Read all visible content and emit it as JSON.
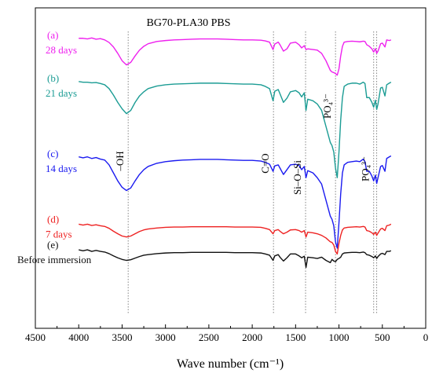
{
  "chart_data": {
    "type": "line",
    "title": "BG70-PLA30 PBS",
    "xlabel": "Wave number (cm⁻¹)",
    "ylabel": "",
    "xlim": [
      4500,
      0
    ],
    "x_reversed": true,
    "x_ticks": [
      4500,
      4000,
      3500,
      3000,
      2500,
      2000,
      1500,
      1000,
      500,
      0
    ],
    "y_ticks": [],
    "grid": false,
    "legend": "none",
    "series": [
      {
        "name": "28 days",
        "letter": "(a)",
        "color": "#ee20ee",
        "baseline": 0.9,
        "x": [
          4000,
          3950,
          3900,
          3850,
          3800,
          3750,
          3700,
          3650,
          3600,
          3550,
          3500,
          3450,
          3400,
          3350,
          3300,
          3250,
          3200,
          3100,
          3000,
          2900,
          2800,
          2700,
          2600,
          2500,
          2400,
          2300,
          2200,
          2100,
          2000,
          1900,
          1850,
          1800,
          1760,
          1740,
          1700,
          1680,
          1640,
          1600,
          1560,
          1500,
          1460,
          1430,
          1400,
          1380,
          1360,
          1300,
          1250,
          1200,
          1150,
          1100,
          1080,
          1060,
          1040,
          1020,
          1000,
          980,
          960,
          940,
          900,
          850,
          800,
          760,
          720,
          700,
          680,
          650,
          620,
          600,
          580,
          565,
          550,
          520,
          500,
          470,
          450,
          420,
          400
        ],
        "y": [
          0.905,
          0.905,
          0.903,
          0.906,
          0.902,
          0.904,
          0.9,
          0.892,
          0.878,
          0.858,
          0.835,
          0.822,
          0.83,
          0.85,
          0.868,
          0.88,
          0.888,
          0.895,
          0.898,
          0.9,
          0.901,
          0.902,
          0.903,
          0.903,
          0.903,
          0.902,
          0.901,
          0.9,
          0.9,
          0.899,
          0.897,
          0.893,
          0.87,
          0.887,
          0.893,
          0.885,
          0.865,
          0.872,
          0.89,
          0.893,
          0.885,
          0.875,
          0.882,
          0.87,
          0.872,
          0.87,
          0.868,
          0.858,
          0.835,
          0.805,
          0.8,
          0.798,
          0.795,
          0.79,
          0.81,
          0.85,
          0.88,
          0.893,
          0.895,
          0.896,
          0.895,
          0.894,
          0.896,
          0.895,
          0.885,
          0.88,
          0.872,
          0.862,
          0.873,
          0.858,
          0.865,
          0.888,
          0.89,
          0.878,
          0.9,
          0.898,
          0.9
        ]
      },
      {
        "name": "21 days",
        "letter": "(b)",
        "color": "#1b9c94",
        "baseline": 0.765,
        "x": [
          4000,
          3950,
          3900,
          3850,
          3800,
          3750,
          3700,
          3650,
          3600,
          3550,
          3500,
          3450,
          3400,
          3350,
          3300,
          3250,
          3200,
          3100,
          3000,
          2900,
          2800,
          2700,
          2600,
          2500,
          2400,
          2300,
          2200,
          2100,
          2000,
          1900,
          1850,
          1800,
          1760,
          1740,
          1700,
          1680,
          1640,
          1600,
          1560,
          1500,
          1460,
          1430,
          1400,
          1380,
          1360,
          1300,
          1250,
          1200,
          1150,
          1100,
          1080,
          1060,
          1040,
          1020,
          1000,
          980,
          960,
          940,
          900,
          850,
          800,
          760,
          720,
          700,
          680,
          650,
          620,
          600,
          580,
          565,
          550,
          520,
          500,
          470,
          450,
          420,
          400
        ],
        "y": [
          0.77,
          0.768,
          0.768,
          0.766,
          0.767,
          0.764,
          0.76,
          0.748,
          0.728,
          0.705,
          0.685,
          0.67,
          0.68,
          0.705,
          0.725,
          0.738,
          0.748,
          0.756,
          0.76,
          0.762,
          0.763,
          0.764,
          0.765,
          0.765,
          0.765,
          0.764,
          0.763,
          0.762,
          0.762,
          0.76,
          0.755,
          0.748,
          0.71,
          0.74,
          0.745,
          0.732,
          0.705,
          0.718,
          0.738,
          0.742,
          0.735,
          0.722,
          0.735,
          0.68,
          0.715,
          0.71,
          0.7,
          0.68,
          0.63,
          0.58,
          0.57,
          0.55,
          0.5,
          0.47,
          0.55,
          0.65,
          0.72,
          0.755,
          0.762,
          0.765,
          0.765,
          0.762,
          0.768,
          0.764,
          0.72,
          0.72,
          0.705,
          0.69,
          0.712,
          0.683,
          0.7,
          0.75,
          0.752,
          0.725,
          0.76,
          0.765,
          0.768
        ]
      },
      {
        "name": "14 days",
        "letter": "(c)",
        "color": "#1a1af0",
        "baseline": 0.53,
        "x": [
          4000,
          3950,
          3900,
          3850,
          3800,
          3750,
          3700,
          3650,
          3600,
          3550,
          3500,
          3450,
          3400,
          3350,
          3300,
          3250,
          3200,
          3100,
          3000,
          2900,
          2800,
          2700,
          2600,
          2500,
          2400,
          2300,
          2200,
          2100,
          2000,
          1900,
          1850,
          1800,
          1760,
          1740,
          1700,
          1680,
          1640,
          1600,
          1560,
          1500,
          1460,
          1430,
          1400,
          1380,
          1360,
          1300,
          1250,
          1200,
          1150,
          1100,
          1080,
          1060,
          1040,
          1020,
          1000,
          980,
          960,
          940,
          900,
          850,
          800,
          760,
          720,
          700,
          680,
          650,
          620,
          600,
          580,
          565,
          550,
          520,
          500,
          470,
          450,
          420,
          400
        ],
        "y": [
          0.535,
          0.532,
          0.535,
          0.53,
          0.533,
          0.528,
          0.525,
          0.51,
          0.485,
          0.46,
          0.44,
          0.43,
          0.438,
          0.46,
          0.48,
          0.495,
          0.505,
          0.515,
          0.52,
          0.523,
          0.525,
          0.526,
          0.527,
          0.527,
          0.527,
          0.526,
          0.525,
          0.524,
          0.524,
          0.522,
          0.518,
          0.512,
          0.49,
          0.507,
          0.51,
          0.5,
          0.48,
          0.495,
          0.51,
          0.512,
          0.508,
          0.495,
          0.505,
          0.47,
          0.492,
          0.485,
          0.47,
          0.45,
          0.4,
          0.35,
          0.34,
          0.32,
          0.27,
          0.25,
          0.33,
          0.42,
          0.485,
          0.51,
          0.518,
          0.52,
          0.522,
          0.52,
          0.528,
          0.52,
          0.49,
          0.49,
          0.475,
          0.46,
          0.478,
          0.452,
          0.47,
          0.505,
          0.508,
          0.49,
          0.53,
          0.535,
          0.538
        ]
      },
      {
        "name": "7 days",
        "letter": "(d)",
        "color": "#ee2222",
        "baseline": 0.325,
        "x": [
          4000,
          3950,
          3900,
          3850,
          3800,
          3750,
          3700,
          3650,
          3600,
          3550,
          3500,
          3450,
          3400,
          3350,
          3300,
          3250,
          3200,
          3100,
          3000,
          2900,
          2800,
          2700,
          2600,
          2500,
          2400,
          2300,
          2200,
          2100,
          2000,
          1900,
          1850,
          1800,
          1760,
          1740,
          1700,
          1680,
          1640,
          1600,
          1560,
          1500,
          1460,
          1430,
          1400,
          1380,
          1360,
          1300,
          1250,
          1200,
          1150,
          1100,
          1080,
          1060,
          1040,
          1020,
          1000,
          980,
          960,
          940,
          900,
          850,
          800,
          760,
          720,
          700,
          680,
          650,
          620,
          600,
          580,
          565,
          550,
          520,
          500,
          470,
          450,
          420,
          400
        ],
        "y": [
          0.325,
          0.322,
          0.325,
          0.321,
          0.323,
          0.32,
          0.318,
          0.312,
          0.303,
          0.295,
          0.288,
          0.285,
          0.288,
          0.295,
          0.302,
          0.307,
          0.31,
          0.313,
          0.315,
          0.316,
          0.316,
          0.317,
          0.317,
          0.317,
          0.317,
          0.317,
          0.316,
          0.316,
          0.316,
          0.315,
          0.312,
          0.308,
          0.295,
          0.305,
          0.308,
          0.303,
          0.295,
          0.3,
          0.307,
          0.308,
          0.305,
          0.3,
          0.305,
          0.285,
          0.3,
          0.298,
          0.295,
          0.29,
          0.282,
          0.27,
          0.268,
          0.26,
          0.24,
          0.232,
          0.265,
          0.29,
          0.307,
          0.313,
          0.315,
          0.316,
          0.317,
          0.316,
          0.318,
          0.316,
          0.305,
          0.303,
          0.298,
          0.293,
          0.3,
          0.29,
          0.297,
          0.31,
          0.312,
          0.305,
          0.32,
          0.322,
          0.325
        ]
      },
      {
        "name": "Before immersion",
        "letter": "(e)",
        "color": "#111111",
        "baseline": 0.245,
        "x": [
          4000,
          3950,
          3900,
          3850,
          3800,
          3750,
          3700,
          3650,
          3600,
          3550,
          3500,
          3450,
          3400,
          3350,
          3300,
          3250,
          3200,
          3100,
          3000,
          2900,
          2800,
          2700,
          2600,
          2500,
          2400,
          2300,
          2200,
          2100,
          2000,
          1900,
          1850,
          1800,
          1760,
          1740,
          1700,
          1680,
          1640,
          1600,
          1560,
          1500,
          1460,
          1430,
          1400,
          1380,
          1360,
          1300,
          1250,
          1200,
          1150,
          1100,
          1080,
          1060,
          1040,
          1020,
          1000,
          980,
          960,
          940,
          900,
          850,
          800,
          760,
          720,
          700,
          680,
          650,
          620,
          600,
          580,
          565,
          550,
          520,
          500,
          470,
          450,
          420,
          400
        ],
        "y": [
          0.245,
          0.242,
          0.245,
          0.24,
          0.243,
          0.24,
          0.238,
          0.233,
          0.226,
          0.22,
          0.215,
          0.212,
          0.214,
          0.219,
          0.224,
          0.228,
          0.23,
          0.233,
          0.235,
          0.236,
          0.236,
          0.237,
          0.237,
          0.237,
          0.237,
          0.237,
          0.236,
          0.236,
          0.236,
          0.235,
          0.232,
          0.228,
          0.212,
          0.226,
          0.23,
          0.222,
          0.21,
          0.22,
          0.232,
          0.232,
          0.226,
          0.22,
          0.225,
          0.19,
          0.222,
          0.22,
          0.218,
          0.222,
          0.212,
          0.205,
          0.215,
          0.21,
          0.208,
          0.215,
          0.218,
          0.222,
          0.232,
          0.235,
          0.236,
          0.237,
          0.237,
          0.236,
          0.238,
          0.236,
          0.23,
          0.228,
          0.224,
          0.22,
          0.226,
          0.218,
          0.224,
          0.232,
          0.234,
          0.23,
          0.24,
          0.24,
          0.242
        ]
      }
    ],
    "reference_lines": [
      {
        "x": 3430,
        "label": "–OH"
      },
      {
        "x": 1755,
        "label": "C=O"
      },
      {
        "x": 1385,
        "label": "Si–O–Si"
      },
      {
        "x": 1040,
        "label": "PO₄³⁻"
      },
      {
        "x": 600,
        "label": "PO₄³⁻"
      },
      {
        "x": 565,
        "label": ""
      }
    ]
  }
}
